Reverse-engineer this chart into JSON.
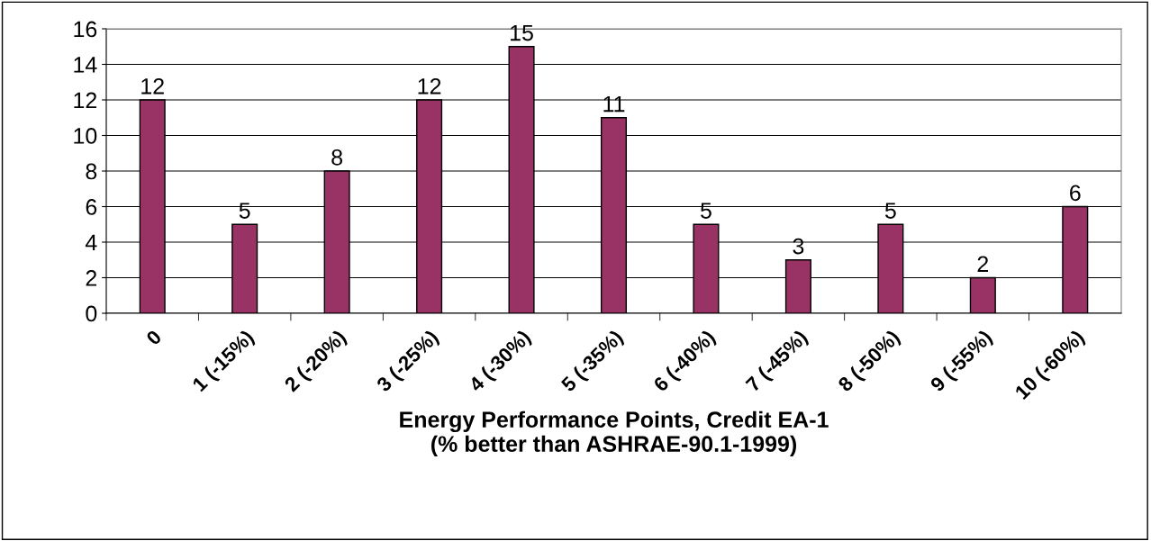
{
  "chart_data": {
    "type": "bar",
    "categories": [
      "0",
      "1 (-15%)",
      "2 (-20%)",
      "3 (-25%)",
      "4 (-30%)",
      "5 (-35%)",
      "6 (-40%)",
      "7 (-45%)",
      "8 (-50%)",
      "9 (-55%)",
      "10 (-60%)"
    ],
    "values": [
      12,
      5,
      8,
      12,
      15,
      11,
      5,
      3,
      5,
      2,
      6
    ],
    "color": "#993366",
    "xlabel": "Energy Performance Points, Credit EA-1\n(% better than ASHRAE-90.1-1999)",
    "ylim": [
      0,
      16
    ],
    "yticks": [
      0,
      2,
      4,
      6,
      8,
      10,
      12,
      14,
      16
    ],
    "grid": "y",
    "data_labels": true
  }
}
